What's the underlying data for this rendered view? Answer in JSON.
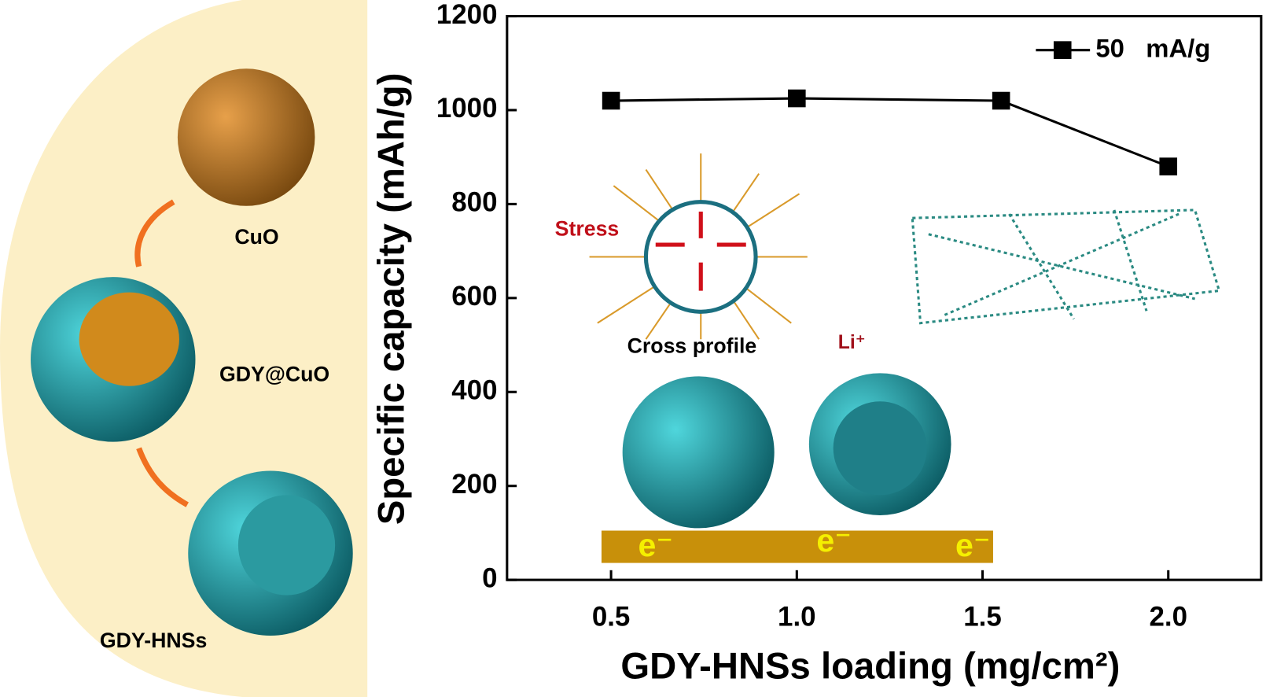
{
  "chart_data": {
    "type": "line",
    "x_label": "GDY-HNSs loading (mg/cm²)",
    "y_label": "Specific capacity (mAh/g)",
    "x": [
      0.5,
      1.0,
      1.55,
      2.0
    ],
    "series": [
      {
        "name": "50   mA/g",
        "color": "#000000",
        "values": [
          1020,
          1025,
          1020,
          880
        ]
      }
    ],
    "xlim": [
      0.22,
      2.25
    ],
    "ylim": [
      0,
      1200
    ],
    "xticks": [
      0.5,
      {
        "value": 1,
        "label": "1.0"
      },
      1.5,
      {
        "value": 2,
        "label": "2.0"
      }
    ],
    "yticks": [
      0,
      200,
      400,
      600,
      800,
      1000,
      1200
    ],
    "legend": "top-right",
    "annotations": [
      "CuO",
      "GDY@CuO",
      "GDY-HNSs",
      "Stress",
      "Cross profile",
      "Li⁺",
      "e⁻",
      "e⁻",
      "e⁻"
    ]
  }
}
